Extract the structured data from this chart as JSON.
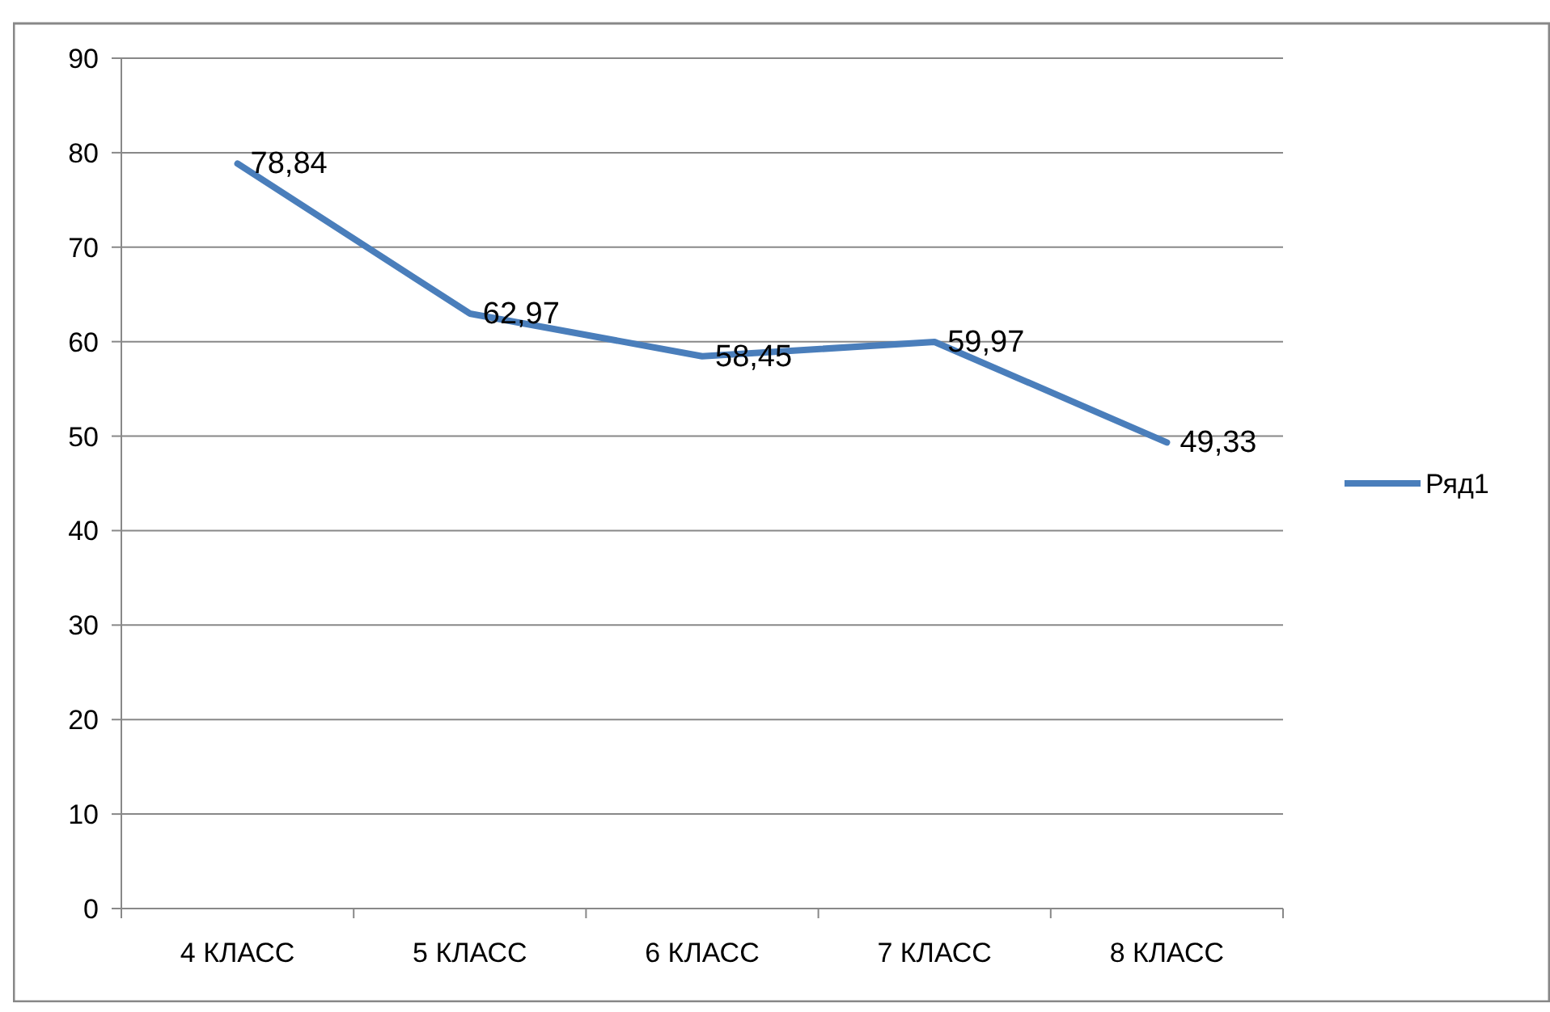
{
  "chart_data": {
    "type": "line",
    "categories": [
      "4 КЛАСС",
      "5 КЛАСС",
      "6 КЛАСС",
      "7 КЛАСС",
      "8 КЛАСС"
    ],
    "series": [
      {
        "name": "Ряд1",
        "color": "#4a7ebb",
        "values": [
          78.84,
          62.97,
          58.45,
          59.97,
          49.33
        ]
      }
    ],
    "value_labels": [
      "78,84",
      "62,97",
      "58,45",
      "59,97",
      "49,33"
    ],
    "ylim": [
      0,
      90
    ],
    "yticks": [
      0,
      10,
      20,
      30,
      40,
      50,
      60,
      70,
      80,
      90
    ],
    "grid": "y",
    "legend": "right",
    "marker": "none",
    "line_style": "solid"
  }
}
